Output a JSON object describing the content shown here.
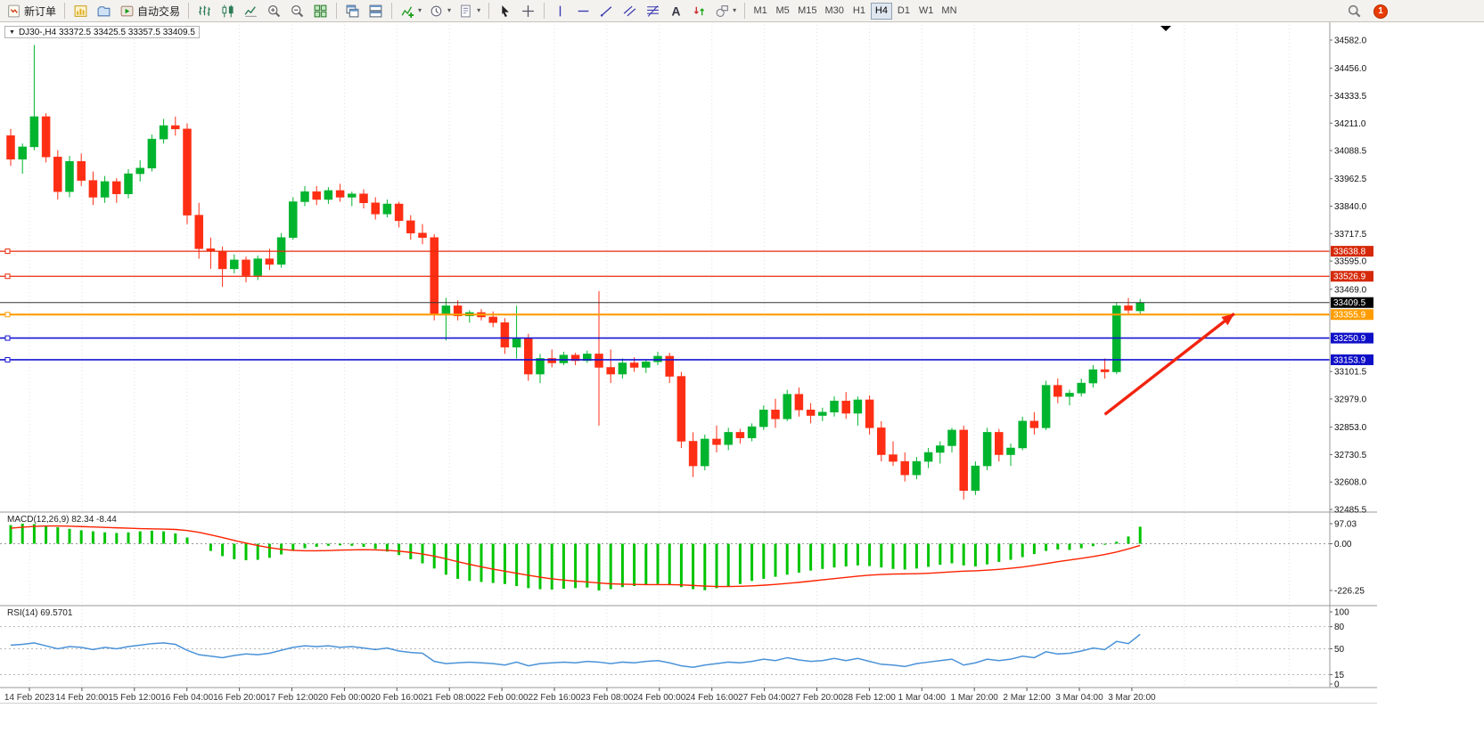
{
  "toolbar": {
    "new_order_label": "新订单",
    "autotrading_label": "自动交易",
    "timeframes": [
      "M1",
      "M5",
      "M15",
      "M30",
      "H1",
      "H4",
      "D1",
      "W1",
      "MN"
    ],
    "active_timeframe": "H4",
    "notification_count": "1",
    "icons": [
      "new-order",
      "new-chart",
      "profiles",
      "autotrading",
      "bar-chart",
      "candlestick-chart",
      "line-chart",
      "zoom-in",
      "zoom-out",
      "tile-windows",
      "cascade-windows",
      "tile-horizontal",
      "indicators",
      "periods",
      "templates",
      "cursor",
      "crosshair",
      "vertical-line",
      "horizontal-line",
      "trendline",
      "equidistant-channel",
      "fibonacci",
      "text",
      "arrows",
      "shapes",
      "search",
      "notification"
    ]
  },
  "chart_data": {
    "type": "candlestick",
    "symbol": "DJ30-",
    "timeframe": "H4",
    "symbol_line": "DJ30-,H4 33372.5 33425.5 33357.5 33409.5",
    "ohlc": {
      "open": 33372.5,
      "high": 33425.5,
      "low": 33357.5,
      "close": 33409.5
    },
    "price_axis_range": {
      "max": 34582.0,
      "min": 32485.5
    },
    "y_axis_labels": [
      "34582.0",
      "34456.0",
      "34333.5",
      "34211.0",
      "34088.5",
      "33962.5",
      "33840.0",
      "33717.5",
      "33595.0",
      "33469.0",
      "33101.5",
      "32979.0",
      "32853.0",
      "32730.5",
      "32608.0",
      "32485.5"
    ],
    "time_labels": [
      "14 Feb 2023",
      "14 Feb 20:00",
      "15 Feb 12:00",
      "16 Feb 04:00",
      "16 Feb 20:00",
      "17 Feb 12:00",
      "20 Feb 00:00",
      "20 Feb 16:00",
      "21 Feb 08:00",
      "22 Feb 00:00",
      "22 Feb 16:00",
      "23 Feb 08:00",
      "24 Feb 00:00",
      "24 Feb 16:00",
      "27 Feb 04:00",
      "27 Feb 20:00",
      "28 Feb 12:00",
      "1 Mar 04:00",
      "1 Mar 20:00",
      "2 Mar 12:00",
      "3 Mar 04:00",
      "3 Mar 20:00"
    ],
    "candles": [
      [
        34155,
        34185,
        34020,
        34050
      ],
      [
        34050,
        34120,
        33985,
        34105
      ],
      [
        34105,
        34560,
        34090,
        34240
      ],
      [
        34240,
        34255,
        34035,
        34060
      ],
      [
        34060,
        34090,
        33870,
        33905
      ],
      [
        33905,
        34065,
        33880,
        34040
      ],
      [
        34040,
        34075,
        33930,
        33955
      ],
      [
        33955,
        33995,
        33845,
        33880
      ],
      [
        33880,
        33975,
        33855,
        33950
      ],
      [
        33950,
        33965,
        33855,
        33895
      ],
      [
        33895,
        34005,
        33875,
        33985
      ],
      [
        33985,
        34045,
        33950,
        34010
      ],
      [
        34010,
        34160,
        33995,
        34140
      ],
      [
        34140,
        34230,
        34120,
        34200
      ],
      [
        34200,
        34240,
        34155,
        34185
      ],
      [
        34185,
        34210,
        33760,
        33800
      ],
      [
        33800,
        33855,
        33605,
        33650
      ],
      [
        33650,
        33700,
        33560,
        33640
      ],
      [
        33640,
        33660,
        33480,
        33560
      ],
      [
        33560,
        33625,
        33540,
        33600
      ],
      [
        33600,
        33615,
        33500,
        33530
      ],
      [
        33530,
        33620,
        33510,
        33605
      ],
      [
        33605,
        33650,
        33555,
        33580
      ],
      [
        33580,
        33720,
        33565,
        33700
      ],
      [
        33700,
        33880,
        33690,
        33860
      ],
      [
        33860,
        33930,
        33840,
        33905
      ],
      [
        33905,
        33930,
        33845,
        33870
      ],
      [
        33870,
        33925,
        33850,
        33910
      ],
      [
        33910,
        33940,
        33860,
        33880
      ],
      [
        33880,
        33905,
        33840,
        33895
      ],
      [
        33895,
        33915,
        33830,
        33855
      ],
      [
        33855,
        33880,
        33780,
        33805
      ],
      [
        33805,
        33870,
        33790,
        33850
      ],
      [
        33850,
        33860,
        33745,
        33775
      ],
      [
        33775,
        33800,
        33690,
        33720
      ],
      [
        33720,
        33760,
        33670,
        33700
      ],
      [
        33700,
        33715,
        33330,
        33360
      ],
      [
        33360,
        33430,
        33240,
        33395
      ],
      [
        33395,
        33420,
        33330,
        33350
      ],
      [
        33350,
        33375,
        33320,
        33365
      ],
      [
        33365,
        33380,
        33330,
        33345
      ],
      [
        33345,
        33370,
        33300,
        33320
      ],
      [
        33320,
        33340,
        33180,
        33210
      ],
      [
        33210,
        33395,
        33160,
        33250
      ],
      [
        33250,
        33270,
        33060,
        33090
      ],
      [
        33090,
        33180,
        33050,
        33160
      ],
      [
        33160,
        33200,
        33120,
        33140
      ],
      [
        33140,
        33190,
        33130,
        33175
      ],
      [
        33175,
        33185,
        33130,
        33150
      ],
      [
        33150,
        33195,
        33140,
        33180
      ],
      [
        33180,
        33460,
        32860,
        33120
      ],
      [
        33120,
        33200,
        33050,
        33090
      ],
      [
        33090,
        33160,
        33070,
        33140
      ],
      [
        33140,
        33165,
        33100,
        33120
      ],
      [
        33120,
        33155,
        33095,
        33145
      ],
      [
        33145,
        33190,
        33130,
        33170
      ],
      [
        33170,
        33185,
        33050,
        33080
      ],
      [
        33080,
        33100,
        32760,
        32790
      ],
      [
        32790,
        32830,
        32630,
        32680
      ],
      [
        32680,
        32820,
        32660,
        32800
      ],
      [
        32800,
        32860,
        32740,
        32775
      ],
      [
        32775,
        32850,
        32750,
        32830
      ],
      [
        32830,
        32845,
        32780,
        32805
      ],
      [
        32805,
        32870,
        32790,
        32855
      ],
      [
        32855,
        32950,
        32840,
        32930
      ],
      [
        32930,
        32980,
        32850,
        32890
      ],
      [
        32890,
        33020,
        32880,
        33000
      ],
      [
        33000,
        33030,
        32900,
        32930
      ],
      [
        32930,
        32960,
        32870,
        32905
      ],
      [
        32905,
        32940,
        32880,
        32920
      ],
      [
        32920,
        32990,
        32900,
        32970
      ],
      [
        32970,
        33010,
        32890,
        32915
      ],
      [
        32915,
        32990,
        32860,
        32975
      ],
      [
        32975,
        32995,
        32820,
        32850
      ],
      [
        32850,
        32880,
        32700,
        32730
      ],
      [
        32730,
        32790,
        32680,
        32700
      ],
      [
        32700,
        32740,
        32610,
        32640
      ],
      [
        32640,
        32720,
        32620,
        32700
      ],
      [
        32700,
        32760,
        32670,
        32740
      ],
      [
        32740,
        32790,
        32690,
        32770
      ],
      [
        32770,
        32850,
        32740,
        32840
      ],
      [
        32840,
        32860,
        32530,
        32570
      ],
      [
        32570,
        32700,
        32550,
        32680
      ],
      [
        32680,
        32850,
        32660,
        32830
      ],
      [
        32830,
        32845,
        32700,
        32730
      ],
      [
        32730,
        32780,
        32680,
        32760
      ],
      [
        32760,
        32900,
        32750,
        32880
      ],
      [
        32880,
        32920,
        32820,
        32850
      ],
      [
        32850,
        33060,
        32840,
        33040
      ],
      [
        33040,
        33070,
        32960,
        32990
      ],
      [
        32990,
        33020,
        32950,
        33005
      ],
      [
        33005,
        33070,
        32990,
        33050
      ],
      [
        33050,
        33130,
        33030,
        33110
      ],
      [
        33110,
        33160,
        33070,
        33100
      ],
      [
        33100,
        33410,
        33090,
        33395
      ],
      [
        33395,
        33430,
        33360,
        33375
      ],
      [
        33372.5,
        33425.5,
        33357.5,
        33409.5
      ]
    ],
    "price_lines": [
      {
        "price": 33638.8,
        "label": "33638.8",
        "color": "#e8290b",
        "badge_bg": "#d6290a",
        "width": 1.2
      },
      {
        "price": 33526.9,
        "label": "33526.9",
        "color": "#e8290b",
        "badge_bg": "#d6290a",
        "width": 1.2
      },
      {
        "price": 33355.9,
        "label": "33355.9",
        "color": "#ff9d00",
        "badge_bg": "#ff9d00",
        "width": 2.2
      },
      {
        "price": 33250.9,
        "label": "33250.9",
        "color": "#1414d2",
        "badge_bg": "#0f0fc8",
        "width": 1.6
      },
      {
        "price": 33153.9,
        "label": "33153.9",
        "color": "#1414d2",
        "badge_bg": "#0f0fc8",
        "width": 1.6
      }
    ],
    "current_price": {
      "value": 33409.5,
      "label": "33409.5",
      "badge_bg": "#000000",
      "line_color": "#333333"
    },
    "macd": {
      "label": "MACD(12,26,9) 82.34 -8.44",
      "params": "12,26,9",
      "value_main": 82.34,
      "value_signal": -8.44,
      "axis": {
        "max": "97.03",
        "zero": "0.00",
        "min": "-226.25"
      },
      "histogram": [
        90,
        97.03,
        95,
        88,
        80,
        72,
        65,
        60,
        55,
        52,
        55,
        60,
        63,
        60,
        50,
        30,
        0,
        -35,
        -60,
        -75,
        -80,
        -78,
        -68,
        -52,
        -35,
        -22,
        -15,
        -10,
        -8,
        -10,
        -15,
        -25,
        -38,
        -55,
        -75,
        -95,
        -120,
        -150,
        -170,
        -180,
        -185,
        -190,
        -195,
        -205,
        -215,
        -220,
        -222,
        -218,
        -215,
        -212,
        -226.25,
        -220,
        -210,
        -205,
        -200,
        -195,
        -200,
        -210,
        -220,
        -225,
        -215,
        -205,
        -195,
        -180,
        -170,
        -160,
        -150,
        -140,
        -130,
        -122,
        -115,
        -110,
        -105,
        -108,
        -115,
        -122,
        -125,
        -120,
        -112,
        -102,
        -95,
        -105,
        -110,
        -100,
        -88,
        -78,
        -65,
        -50,
        -35,
        -28,
        -30,
        -22,
        -12,
        -5,
        10,
        35,
        82.34
      ],
      "signal": [
        75,
        80,
        84,
        86,
        86,
        85,
        83,
        81,
        79,
        77,
        75,
        73,
        72,
        71,
        69,
        64,
        55,
        43,
        30,
        16,
        3,
        -9,
        -19,
        -27,
        -32,
        -34,
        -34,
        -33,
        -31,
        -30,
        -29,
        -30,
        -32,
        -36,
        -42,
        -50,
        -60,
        -73,
        -87,
        -100,
        -112,
        -123,
        -133,
        -143,
        -153,
        -162,
        -170,
        -176,
        -181,
        -185,
        -190,
        -194,
        -196,
        -197,
        -198,
        -198,
        -198,
        -199,
        -202,
        -205,
        -207,
        -207,
        -206,
        -204,
        -201,
        -197,
        -192,
        -187,
        -181,
        -175,
        -169,
        -163,
        -157,
        -152,
        -149,
        -147,
        -146,
        -145,
        -143,
        -140,
        -136,
        -133,
        -131,
        -128,
        -124,
        -119,
        -113,
        -105,
        -96,
        -87,
        -79,
        -71,
        -62,
        -52,
        -40,
        -25,
        -8.44
      ]
    },
    "rsi": {
      "label": "RSI(14) 69.5701",
      "value": 69.5701,
      "axis_labels": [
        "100",
        "80",
        "50",
        "15",
        "0"
      ],
      "levels": [
        80,
        50,
        15
      ],
      "values": [
        55,
        56,
        58,
        54,
        50,
        53,
        52,
        49,
        52,
        50,
        53,
        55,
        57,
        58,
        56,
        48,
        42,
        40,
        38,
        41,
        43,
        42,
        44,
        48,
        52,
        54,
        53,
        54,
        52,
        53,
        51,
        49,
        51,
        47,
        45,
        44,
        33,
        30,
        31,
        32,
        31,
        30,
        28,
        32,
        27,
        30,
        31,
        32,
        31,
        33,
        32,
        30,
        32,
        31,
        33,
        34,
        31,
        27,
        25,
        28,
        30,
        32,
        31,
        33,
        36,
        34,
        38,
        35,
        33,
        34,
        37,
        34,
        37,
        33,
        29,
        28,
        26,
        30,
        32,
        34,
        36,
        28,
        31,
        36,
        34,
        36,
        40,
        38,
        46,
        43,
        44,
        47,
        51,
        49,
        60,
        57,
        69.57
      ]
    },
    "annotations": {
      "trend_arrow": {
        "from_bar": 93,
        "from_price": 32910,
        "to_bar": 104,
        "to_price": 33360,
        "color": "#f2240f"
      }
    }
  }
}
